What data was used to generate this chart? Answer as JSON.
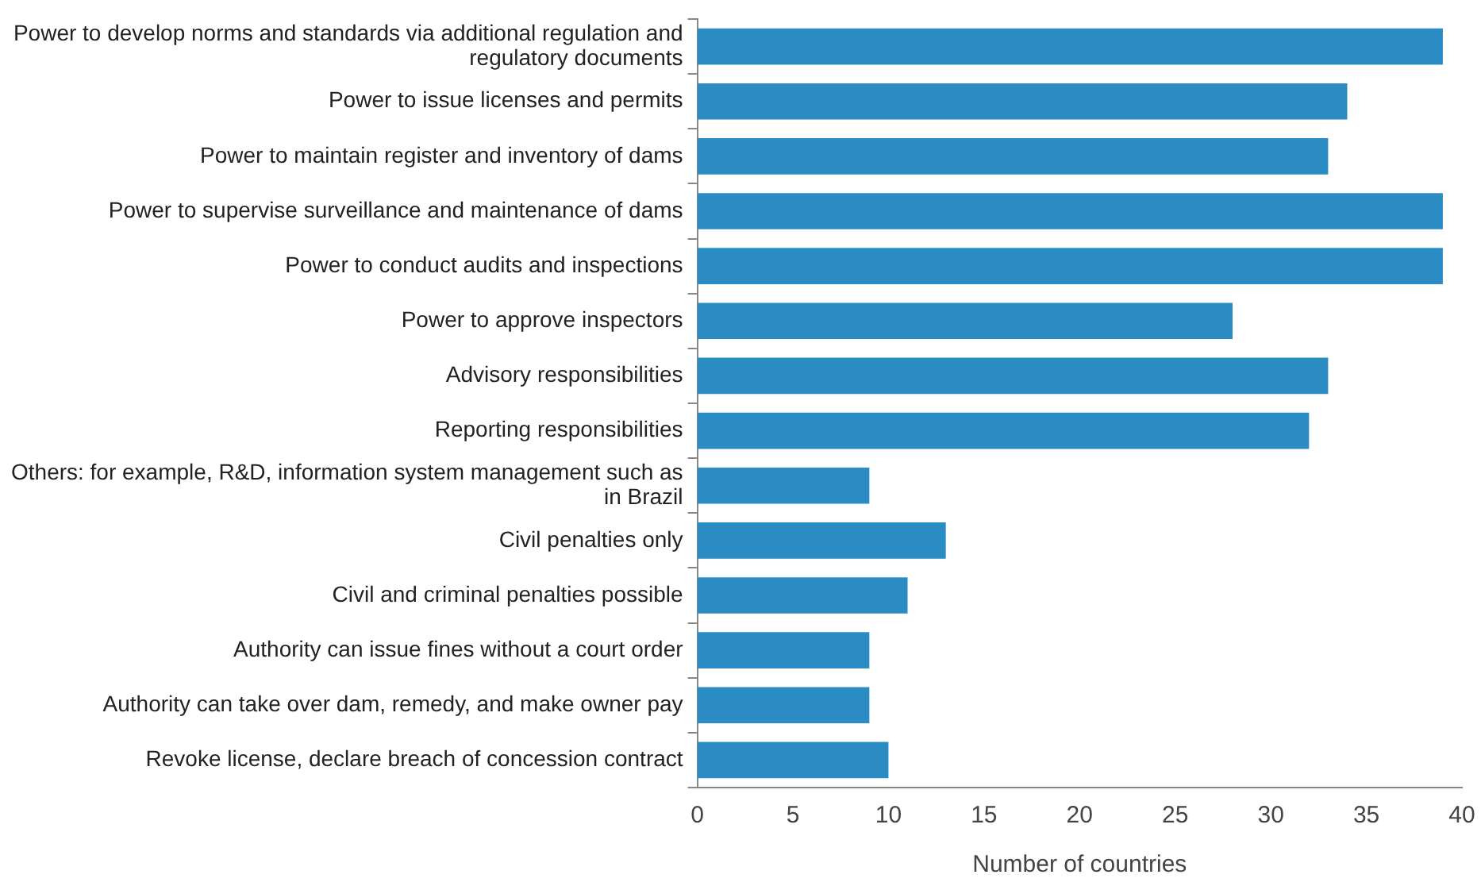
{
  "chart_data": {
    "type": "bar",
    "orientation": "horizontal",
    "xlabel": "Number of countries",
    "categories": [
      "Power to develop norms and standards via additional regulation and regulatory documents",
      "Power to issue licenses and permits",
      "Power to maintain register and inventory of dams",
      "Power to supervise surveillance and maintenance of dams",
      "Power to conduct audits and inspections",
      "Power to approve inspectors",
      "Advisory responsibilities",
      "Reporting responsibilities",
      "Others: for example, R&D, information system management such as in Brazil",
      "Civil penalties only",
      "Civil and criminal penalties possible",
      "Authority can issue fines without a court order",
      "Authority can take over dam, remedy, and make owner pay",
      "Revoke license, declare breach of concession contract"
    ],
    "values": [
      39,
      34,
      33,
      39,
      39,
      28,
      33,
      32,
      9,
      13,
      11,
      9,
      9,
      10
    ],
    "color": "#2b8cc4",
    "xlim": [
      0,
      40
    ],
    "xticks": [
      0,
      5,
      10,
      15,
      20,
      25,
      30,
      35,
      40
    ],
    "grid": false,
    "legend": false
  }
}
